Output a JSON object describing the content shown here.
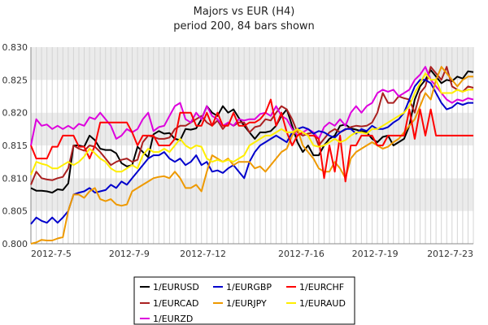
{
  "chart_data": {
    "type": "line",
    "title": "Majors vs EUR (H4)",
    "subtitle": "period 200, 84 bars shown",
    "x_ticks": [
      "2012-7-5",
      "2012-7-9",
      "2012-7-12",
      "2012-7-16",
      "2012-7-19",
      "2012-7-23"
    ],
    "x_range": [
      "2012-7-5",
      "2012-7-23"
    ],
    "bars": 84,
    "ylim": [
      0.8,
      0.83
    ],
    "y_ticks": [
      "0.800",
      "0.805",
      "0.810",
      "0.815",
      "0.820",
      "0.825",
      "0.830"
    ],
    "grid": true,
    "legend_position": "bottom",
    "series": [
      {
        "name": "1/EURUSD",
        "color": "#000000",
        "values": [
          0.8085,
          0.8081,
          0.8081,
          0.808,
          0.8078,
          0.8083,
          0.8082,
          0.8092,
          0.815,
          0.815,
          0.8148,
          0.8165,
          0.8158,
          0.8145,
          0.8143,
          0.8143,
          0.8138,
          0.8123,
          0.8118,
          0.812,
          0.8148,
          0.814,
          0.8132,
          0.8167,
          0.8172,
          0.8168,
          0.8169,
          0.816,
          0.8158,
          0.8175,
          0.8174,
          0.8176,
          0.819,
          0.821,
          0.82,
          0.8195,
          0.821,
          0.82,
          0.8205,
          0.8192,
          0.818,
          0.817,
          0.816,
          0.817,
          0.817,
          0.8172,
          0.818,
          0.8195,
          0.8205,
          0.818,
          0.8155,
          0.814,
          0.815,
          0.8135,
          0.8135,
          0.815,
          0.816,
          0.8165,
          0.818,
          0.8182,
          0.8176,
          0.8174,
          0.8172,
          0.817,
          0.816,
          0.8155,
          0.8163,
          0.8165,
          0.815,
          0.8155,
          0.816,
          0.818,
          0.822,
          0.824,
          0.825,
          0.8265,
          0.8255,
          0.8245,
          0.825,
          0.8248,
          0.8255,
          0.8252,
          0.8263,
          0.8262
        ]
      },
      {
        "name": "1/EURCAD",
        "color": "#aa2020",
        "values": [
          0.809,
          0.811,
          0.81,
          0.8098,
          0.8097,
          0.81,
          0.8102,
          0.8115,
          0.815,
          0.8145,
          0.8142,
          0.815,
          0.8148,
          0.814,
          0.813,
          0.812,
          0.8125,
          0.8128,
          0.813,
          0.8125,
          0.8128,
          0.8155,
          0.8165,
          0.8163,
          0.816,
          0.816,
          0.8162,
          0.8175,
          0.818,
          0.818,
          0.8185,
          0.819,
          0.8195,
          0.8185,
          0.818,
          0.8188,
          0.8175,
          0.8185,
          0.818,
          0.8185,
          0.8185,
          0.817,
          0.8178,
          0.818,
          0.819,
          0.8188,
          0.82,
          0.821,
          0.8205,
          0.819,
          0.817,
          0.8165,
          0.8168,
          0.817,
          0.815,
          0.816,
          0.817,
          0.8175,
          0.817,
          0.8174,
          0.8178,
          0.818,
          0.8179,
          0.818,
          0.8185,
          0.82,
          0.823,
          0.8215,
          0.8215,
          0.8225,
          0.8222,
          0.822,
          0.82,
          0.823,
          0.824,
          0.827,
          0.826,
          0.825,
          0.827,
          0.824,
          0.8235,
          0.8232,
          0.824,
          0.8238
        ]
      },
      {
        "name": "1/EURZD",
        "color": "#dd00dd",
        "values": [
          0.815,
          0.819,
          0.818,
          0.8182,
          0.8175,
          0.818,
          0.8175,
          0.818,
          0.8175,
          0.8183,
          0.818,
          0.8193,
          0.819,
          0.82,
          0.819,
          0.818,
          0.816,
          0.8165,
          0.8175,
          0.817,
          0.8175,
          0.819,
          0.82,
          0.8172,
          0.8178,
          0.818,
          0.8195,
          0.821,
          0.8215,
          0.819,
          0.8185,
          0.82,
          0.819,
          0.821,
          0.8195,
          0.819,
          0.818,
          0.8185,
          0.818,
          0.819,
          0.8188,
          0.819,
          0.819,
          0.8198,
          0.82,
          0.8195,
          0.821,
          0.8195,
          0.819,
          0.8175,
          0.8165,
          0.817,
          0.8175,
          0.817,
          0.816,
          0.8178,
          0.8185,
          0.818,
          0.819,
          0.818,
          0.82,
          0.821,
          0.82,
          0.821,
          0.8215,
          0.823,
          0.8235,
          0.8232,
          0.8235,
          0.8225,
          0.823,
          0.8235,
          0.825,
          0.8258,
          0.827,
          0.825,
          0.824,
          0.823,
          0.822,
          0.8215,
          0.822,
          0.8218,
          0.8222,
          0.822
        ]
      },
      {
        "name": "1/EURGBP",
        "color": "#0000cc",
        "values": [
          0.803,
          0.804,
          0.8035,
          0.8032,
          0.804,
          0.8032,
          0.804,
          0.805,
          0.8075,
          0.8078,
          0.808,
          0.8085,
          0.8078,
          0.808,
          0.8082,
          0.809,
          0.8085,
          0.8095,
          0.809,
          0.81,
          0.811,
          0.812,
          0.813,
          0.8135,
          0.8135,
          0.814,
          0.813,
          0.8125,
          0.813,
          0.812,
          0.8125,
          0.8135,
          0.812,
          0.8125,
          0.811,
          0.8112,
          0.8108,
          0.8115,
          0.812,
          0.811,
          0.81,
          0.8125,
          0.814,
          0.815,
          0.8155,
          0.816,
          0.8165,
          0.816,
          0.8155,
          0.817,
          0.8175,
          0.8178,
          0.8175,
          0.8168,
          0.8172,
          0.817,
          0.8165,
          0.8162,
          0.817,
          0.8175,
          0.8175,
          0.8168,
          0.8175,
          0.8172,
          0.818,
          0.8175,
          0.8175,
          0.8178,
          0.8185,
          0.819,
          0.82,
          0.822,
          0.824,
          0.825,
          0.825,
          0.8245,
          0.823,
          0.8215,
          0.8205,
          0.8208,
          0.8215,
          0.8212,
          0.8215,
          0.8215
        ]
      },
      {
        "name": "1/EURJPY",
        "color": "#ee9900",
        "values": [
          0.8,
          0.8002,
          0.8006,
          0.8005,
          0.8005,
          0.8008,
          0.801,
          0.805,
          0.8075,
          0.8075,
          0.807,
          0.808,
          0.8085,
          0.8068,
          0.8065,
          0.8068,
          0.806,
          0.8058,
          0.806,
          0.808,
          0.8085,
          0.809,
          0.8095,
          0.81,
          0.8102,
          0.8103,
          0.81,
          0.811,
          0.81,
          0.8085,
          0.8085,
          0.809,
          0.808,
          0.811,
          0.8135,
          0.813,
          0.8125,
          0.813,
          0.812,
          0.8125,
          0.8125,
          0.8125,
          0.8115,
          0.8118,
          0.811,
          0.812,
          0.813,
          0.814,
          0.8145,
          0.8165,
          0.8175,
          0.815,
          0.814,
          0.813,
          0.8115,
          0.811,
          0.811,
          0.8125,
          0.8115,
          0.81,
          0.813,
          0.814,
          0.8145,
          0.815,
          0.8155,
          0.815,
          0.8145,
          0.8148,
          0.8155,
          0.816,
          0.817,
          0.818,
          0.819,
          0.821,
          0.823,
          0.822,
          0.825,
          0.827,
          0.826,
          0.825,
          0.824,
          0.825,
          0.8255,
          0.8255
        ]
      },
      {
        "name": "1/EURCHF",
        "color": "#ff0000",
        "values": [
          0.815,
          0.813,
          0.813,
          0.813,
          0.8148,
          0.8148,
          0.8165,
          0.8165,
          0.8165,
          0.8148,
          0.8148,
          0.813,
          0.815,
          0.8185,
          0.8185,
          0.8185,
          0.8185,
          0.8185,
          0.8185,
          0.817,
          0.815,
          0.8165,
          0.8165,
          0.8165,
          0.815,
          0.815,
          0.815,
          0.816,
          0.82,
          0.82,
          0.82,
          0.818,
          0.818,
          0.82,
          0.818,
          0.82,
          0.818,
          0.818,
          0.82,
          0.818,
          0.818,
          0.8185,
          0.8185,
          0.819,
          0.82,
          0.822,
          0.818,
          0.82,
          0.817,
          0.815,
          0.8165,
          0.817,
          0.8165,
          0.8165,
          0.816,
          0.81,
          0.815,
          0.811,
          0.8165,
          0.8095,
          0.815,
          0.815,
          0.8165,
          0.8165,
          0.8165,
          0.815,
          0.815,
          0.8165,
          0.8165,
          0.8165,
          0.8165,
          0.8205,
          0.816,
          0.8205,
          0.8165,
          0.8205,
          0.8165,
          0.8165,
          0.8165,
          0.8165,
          0.8165,
          0.8165,
          0.8165,
          0.8165
        ]
      },
      {
        "name": "1/EURAUD",
        "color": "#ffee00",
        "values": [
          0.8105,
          0.8125,
          0.8122,
          0.812,
          0.8115,
          0.8115,
          0.812,
          0.8125,
          0.812,
          0.8125,
          0.8133,
          0.8145,
          0.8138,
          0.813,
          0.8125,
          0.8115,
          0.811,
          0.811,
          0.8115,
          0.812,
          0.8115,
          0.8135,
          0.8145,
          0.814,
          0.814,
          0.8145,
          0.814,
          0.815,
          0.816,
          0.815,
          0.8145,
          0.815,
          0.8148,
          0.813,
          0.8125,
          0.8128,
          0.8125,
          0.8128,
          0.8125,
          0.813,
          0.8135,
          0.815,
          0.8155,
          0.816,
          0.8165,
          0.8165,
          0.817,
          0.8175,
          0.817,
          0.817,
          0.8175,
          0.817,
          0.8165,
          0.815,
          0.8148,
          0.815,
          0.8155,
          0.816,
          0.8155,
          0.8158,
          0.8165,
          0.817,
          0.817,
          0.8168,
          0.8175,
          0.8175,
          0.818,
          0.8185,
          0.819,
          0.8195,
          0.82,
          0.821,
          0.823,
          0.8245,
          0.826,
          0.825,
          0.825,
          0.823,
          0.823,
          0.823,
          0.8235,
          0.8232,
          0.8235,
          0.8235
        ]
      }
    ]
  }
}
